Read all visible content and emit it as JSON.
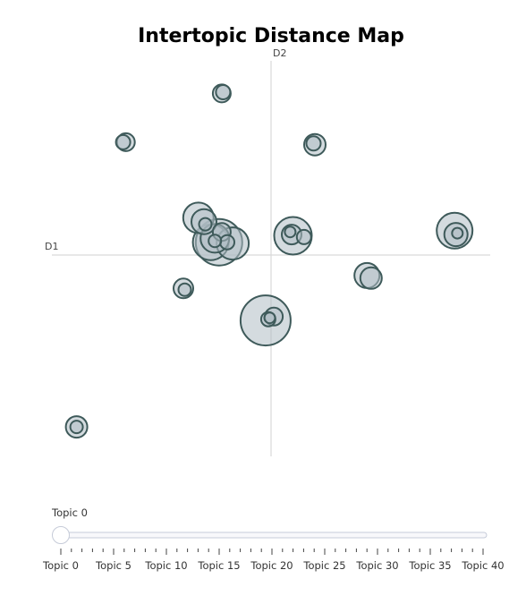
{
  "chart_data": {
    "type": "scatter",
    "title": "Intertopic Distance Map",
    "xlabel": "D1",
    "ylabel": "D2",
    "xlim": [
      -8,
      8
    ],
    "ylim": [
      -7.5,
      7.5
    ],
    "grid": false,
    "points": [
      {
        "topic": 0,
        "x": -1.9,
        "y": 0.5,
        "size": 26
      },
      {
        "topic": 1,
        "x": -0.2,
        "y": -2.55,
        "size": 28
      },
      {
        "topic": 2,
        "x": 0.8,
        "y": 0.75,
        "size": 21
      },
      {
        "topic": 3,
        "x": 6.7,
        "y": 0.95,
        "size": 20
      },
      {
        "topic": 4,
        "x": -2.65,
        "y": 1.45,
        "size": 17
      },
      {
        "topic": 5,
        "x": -2.2,
        "y": 0.5,
        "size": 20
      },
      {
        "topic": 6,
        "x": 3.5,
        "y": -0.8,
        "size": 14
      },
      {
        "topic": 7,
        "x": -1.4,
        "y": 0.45,
        "size": 18
      },
      {
        "topic": 8,
        "x": -2.05,
        "y": 0.65,
        "size": 16
      },
      {
        "topic": 9,
        "x": 3.65,
        "y": -0.9,
        "size": 12
      },
      {
        "topic": 10,
        "x": -5.3,
        "y": 4.4,
        "size": 10
      },
      {
        "topic": 11,
        "x": -1.8,
        "y": 6.3,
        "size": 10
      },
      {
        "topic": 12,
        "x": -2.45,
        "y": 1.3,
        "size": 14
      },
      {
        "topic": 13,
        "x": 6.75,
        "y": 0.8,
        "size": 13
      },
      {
        "topic": 14,
        "x": 1.6,
        "y": 4.3,
        "size": 12
      },
      {
        "topic": 15,
        "x": 0.75,
        "y": 0.8,
        "size": 11
      },
      {
        "topic": 16,
        "x": -3.2,
        "y": -1.3,
        "size": 11
      },
      {
        "topic": 17,
        "x": -7.1,
        "y": -6.7,
        "size": 12
      },
      {
        "topic": 18,
        "x": -1.8,
        "y": 0.9,
        "size": 10
      },
      {
        "topic": 19,
        "x": 0.1,
        "y": -2.4,
        "size": 10
      },
      {
        "topic": 20,
        "x": -1.75,
        "y": 6.35,
        "size": 8
      },
      {
        "topic": 21,
        "x": -5.4,
        "y": 4.4,
        "size": 8
      },
      {
        "topic": 22,
        "x": -0.1,
        "y": -2.5,
        "size": 8
      },
      {
        "topic": 23,
        "x": -1.6,
        "y": 0.5,
        "size": 8
      },
      {
        "topic": 24,
        "x": 1.2,
        "y": 0.7,
        "size": 8
      },
      {
        "topic": 25,
        "x": 1.55,
        "y": 4.35,
        "size": 8
      },
      {
        "topic": 26,
        "x": -3.15,
        "y": -1.35,
        "size": 7
      },
      {
        "topic": 27,
        "x": -2.05,
        "y": 0.55,
        "size": 7
      },
      {
        "topic": 28,
        "x": -7.1,
        "y": -6.7,
        "size": 7
      },
      {
        "topic": 29,
        "x": -0.05,
        "y": -2.45,
        "size": 6
      },
      {
        "topic": 30,
        "x": -2.4,
        "y": 1.2,
        "size": 7
      },
      {
        "topic": 31,
        "x": 0.7,
        "y": 0.9,
        "size": 6
      },
      {
        "topic": 32,
        "x": 6.8,
        "y": 0.85,
        "size": 6
      }
    ],
    "slider": {
      "current_label": "Topic 0",
      "min": 0,
      "max": 40,
      "value": 0,
      "minor_step": 1,
      "tick_labels": [
        "Topic 0",
        "Topic 5",
        "Topic 10",
        "Topic 15",
        "Topic 20",
        "Topic 25",
        "Topic 30",
        "Topic 35",
        "Topic 40"
      ]
    }
  }
}
